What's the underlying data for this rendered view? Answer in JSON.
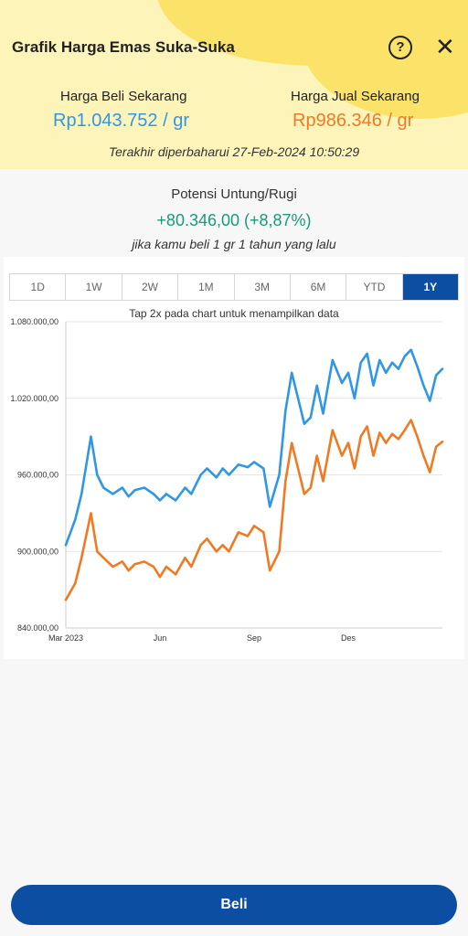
{
  "header": {
    "title": "Grafik Harga Emas Suka-Suka",
    "help_glyph": "?",
    "close_glyph": "✕"
  },
  "prices": {
    "buy_label": "Harga Beli Sekarang",
    "buy_value": "Rp1.043.752 / gr",
    "sell_label": "Harga Jual Sekarang",
    "sell_value": "Rp986.346 / gr",
    "updated": "Terakhir diperbaharui 27-Feb-2024 10:50:29"
  },
  "potensi": {
    "label": "Potensi Untung/Rugi",
    "value": "+80.346,00 (+8,87%)",
    "note": "jika kamu beli 1 gr 1 tahun yang lalu"
  },
  "tabs": [
    "1D",
    "1W",
    "2W",
    "1M",
    "3M",
    "6M",
    "YTD",
    "1Y"
  ],
  "active_tab": "1Y",
  "chart_note": "Tap 2x pada chart untuk menampilkan data",
  "colors": {
    "buy": "#2f97e6",
    "sell": "#f07a24",
    "accent": "#0b4ea2",
    "gain": "#179b7a"
  },
  "chart_data": {
    "type": "line",
    "title": "",
    "xlabel": "",
    "ylabel": "",
    "ylim": [
      840000,
      1080000
    ],
    "yticks": [
      840000,
      900000,
      960000,
      1020000,
      1080000
    ],
    "ytick_labels": [
      "840.000,00",
      "900.000,00",
      "960.000,00",
      "1.020.000,00",
      "1.080.000,00"
    ],
    "x_ticks": [
      {
        "pos": 0,
        "label": "Mar 2023"
      },
      {
        "pos": 3,
        "label": "Jun"
      },
      {
        "pos": 6,
        "label": "Sep"
      },
      {
        "pos": 9,
        "label": "Des"
      }
    ],
    "x_max": 12,
    "grid": true,
    "series": [
      {
        "color": "#2f97e6",
        "x": [
          0,
          0.3,
          0.5,
          0.8,
          1,
          1.2,
          1.5,
          1.8,
          2,
          2.2,
          2.5,
          2.8,
          3,
          3.2,
          3.5,
          3.8,
          4,
          4.3,
          4.5,
          4.8,
          5,
          5.2,
          5.5,
          5.8,
          6,
          6.3,
          6.5,
          6.8,
          7,
          7.2,
          7.4,
          7.6,
          7.8,
          8,
          8.2,
          8.5,
          8.8,
          9,
          9.2,
          9.4,
          9.6,
          9.8,
          10,
          10.2,
          10.4,
          10.6,
          10.8,
          11,
          11.2,
          11.4,
          11.6,
          11.8,
          12
        ],
        "values": [
          905000,
          925000,
          945000,
          990000,
          960000,
          950000,
          945000,
          950000,
          943000,
          948000,
          950000,
          945000,
          940000,
          945000,
          940000,
          950000,
          945000,
          960000,
          965000,
          958000,
          965000,
          960000,
          968000,
          966000,
          970000,
          965000,
          935000,
          960000,
          1010000,
          1040000,
          1020000,
          1000000,
          1005000,
          1030000,
          1008000,
          1050000,
          1032000,
          1040000,
          1020000,
          1048000,
          1055000,
          1030000,
          1050000,
          1040000,
          1048000,
          1043000,
          1053000,
          1058000,
          1045000,
          1030000,
          1018000,
          1038000,
          1043000
        ]
      },
      {
        "color": "#f07a24",
        "x": [
          0,
          0.3,
          0.5,
          0.8,
          1,
          1.2,
          1.5,
          1.8,
          2,
          2.2,
          2.5,
          2.8,
          3,
          3.2,
          3.5,
          3.8,
          4,
          4.3,
          4.5,
          4.8,
          5,
          5.2,
          5.5,
          5.8,
          6,
          6.3,
          6.5,
          6.8,
          7,
          7.2,
          7.4,
          7.6,
          7.8,
          8,
          8.2,
          8.5,
          8.8,
          9,
          9.2,
          9.4,
          9.6,
          9.8,
          10,
          10.2,
          10.4,
          10.6,
          10.8,
          11,
          11.2,
          11.4,
          11.6,
          11.8,
          12
        ],
        "values": [
          862000,
          875000,
          895000,
          930000,
          900000,
          895000,
          888000,
          892000,
          885000,
          890000,
          892000,
          888000,
          880000,
          888000,
          882000,
          895000,
          888000,
          905000,
          910000,
          900000,
          905000,
          900000,
          915000,
          912000,
          920000,
          915000,
          885000,
          900000,
          955000,
          985000,
          965000,
          945000,
          950000,
          975000,
          955000,
          995000,
          975000,
          985000,
          965000,
          990000,
          998000,
          975000,
          993000,
          985000,
          992000,
          988000,
          995000,
          1003000,
          990000,
          975000,
          962000,
          982000,
          986000
        ]
      }
    ]
  },
  "buy_button": "Beli"
}
